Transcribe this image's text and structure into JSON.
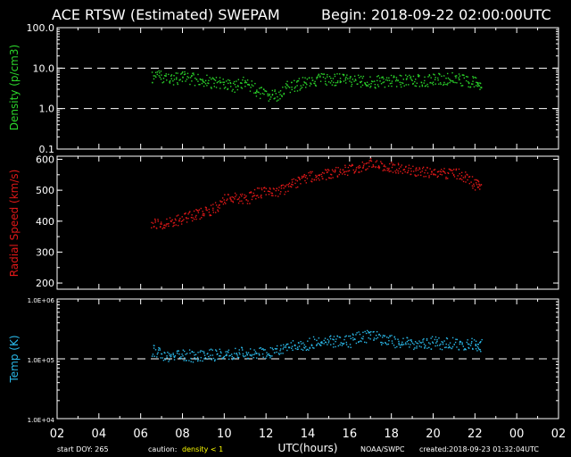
{
  "header": {
    "title": "ACE RTSW (Estimated) SWEPAM",
    "begin": "Begin: 2018-09-22 02:00:00UTC"
  },
  "footer": {
    "start_doy": "start DOY: 265",
    "caution_label": "caution:",
    "caution_value": "density < 1",
    "source": "NOAA/SWPC",
    "created": "created:2018-09-23 01:32:04UTC"
  },
  "colors": {
    "density": "#2bd42b",
    "speed": "#e01818",
    "temp": "#2ab8e8",
    "caution": "#ffff00",
    "axes": "#ffffff"
  },
  "chart_data": [
    {
      "type": "scatter",
      "name": "density",
      "ylabel": "Density (p/cm3)",
      "xlabel": "UTC(hours)",
      "y_scale": "log",
      "ylim": [
        0.1,
        100
      ],
      "yticks": [
        "0.1",
        "1.0",
        "10.0",
        "100.0"
      ],
      "reference_lines": [
        1.0,
        10.0
      ],
      "series": [
        {
          "x": [
            6.5,
            7.0,
            7.5,
            8.0,
            8.5,
            9.0,
            9.5,
            10.0,
            10.5,
            11.0,
            11.5,
            12.0,
            12.5,
            13.0,
            13.5,
            14.0,
            14.5,
            15.0,
            15.5,
            16.0,
            16.5,
            17.0,
            17.5,
            18.0,
            18.5,
            19.0,
            19.5,
            20.0,
            20.5,
            21.0,
            21.5,
            22.0,
            22.3
          ],
          "values": [
            6.0,
            6.5,
            5.5,
            6.0,
            5.5,
            5.0,
            4.5,
            4.0,
            3.5,
            4.5,
            3.0,
            2.0,
            2.2,
            3.5,
            4.0,
            5.0,
            5.5,
            5.0,
            5.5,
            5.0,
            5.0,
            4.5,
            5.0,
            4.8,
            5.0,
            5.2,
            5.0,
            5.3,
            5.5,
            6.0,
            5.0,
            4.5,
            4.0
          ]
        }
      ]
    },
    {
      "type": "scatter",
      "name": "speed",
      "ylabel": "Radial Speed (km/s)",
      "xlabel": "UTC(hours)",
      "ylim": [
        180,
        610
      ],
      "yticks": [
        "200",
        "300",
        "400",
        "500",
        "600"
      ],
      "series": [
        {
          "x": [
            6.5,
            7.0,
            7.5,
            8.0,
            8.5,
            9.0,
            9.5,
            10.0,
            10.5,
            11.0,
            11.5,
            12.0,
            12.5,
            13.0,
            13.5,
            14.0,
            14.5,
            15.0,
            15.5,
            16.0,
            16.5,
            17.0,
            17.5,
            18.0,
            18.5,
            19.0,
            19.5,
            20.0,
            20.5,
            21.0,
            21.5,
            22.0,
            22.3
          ],
          "values": [
            395,
            390,
            400,
            410,
            420,
            430,
            440,
            470,
            480,
            470,
            490,
            500,
            495,
            510,
            530,
            545,
            550,
            555,
            560,
            570,
            575,
            590,
            580,
            575,
            570,
            565,
            560,
            558,
            555,
            560,
            545,
            520,
            515
          ]
        }
      ]
    },
    {
      "type": "scatter",
      "name": "temp",
      "ylabel": "Temp (K)",
      "xlabel": "UTC(hours)",
      "y_scale": "log",
      "ylim": [
        10000,
        1000000
      ],
      "yticks": [
        "1.0E+04",
        "1.0E+05",
        "1.0E+06"
      ],
      "reference_lines": [
        100000
      ],
      "series": [
        {
          "x": [
            6.5,
            7.0,
            7.5,
            8.0,
            8.5,
            9.0,
            9.5,
            10.0,
            10.5,
            11.0,
            11.5,
            12.0,
            12.5,
            13.0,
            13.5,
            14.0,
            14.5,
            15.0,
            15.5,
            16.0,
            16.5,
            17.0,
            17.5,
            18.0,
            18.5,
            19.0,
            19.5,
            20.0,
            20.5,
            21.0,
            21.5,
            22.0,
            22.3
          ],
          "values": [
            140000,
            120000,
            110000,
            120000,
            110000,
            115000,
            120000,
            125000,
            120000,
            130000,
            120000,
            130000,
            140000,
            150000,
            170000,
            180000,
            200000,
            210000,
            190000,
            200000,
            230000,
            250000,
            220000,
            200000,
            190000,
            180000,
            185000,
            190000,
            180000,
            185000,
            175000,
            180000,
            170000
          ]
        }
      ]
    }
  ],
  "x_axis": {
    "label": "UTC(hours)",
    "range": [
      2,
      26
    ],
    "ticks": [
      "02",
      "04",
      "06",
      "08",
      "10",
      "12",
      "14",
      "16",
      "18",
      "20",
      "22",
      "00",
      "02"
    ]
  }
}
